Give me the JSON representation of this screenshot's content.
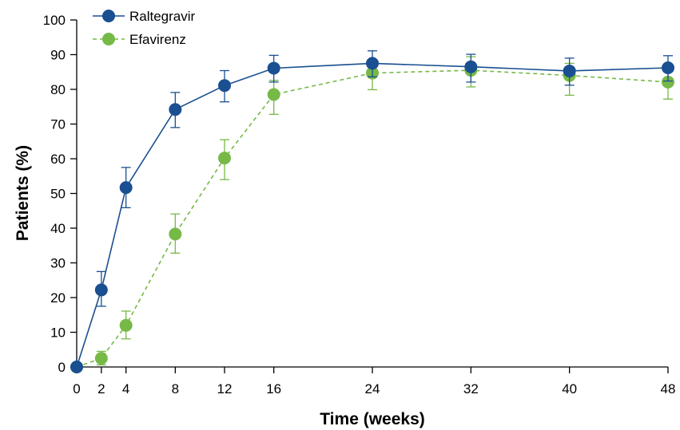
{
  "chart_data": {
    "type": "line",
    "title": "",
    "xlabel": "Time (weeks)",
    "ylabel": "Patients (%)",
    "xlim": [
      0,
      48
    ],
    "ylim": [
      0,
      100
    ],
    "x_ticks": [
      0,
      2,
      4,
      8,
      12,
      16,
      24,
      32,
      40,
      48
    ],
    "y_ticks": [
      0,
      10,
      20,
      30,
      40,
      50,
      60,
      70,
      80,
      90,
      100
    ],
    "grid": false,
    "legend_position": "top-left",
    "series": [
      {
        "name": "Raltegravir",
        "color": "#1a4f91",
        "line_style": "solid",
        "x": [
          0,
          2,
          4,
          8,
          12,
          16,
          24,
          32,
          40,
          48
        ],
        "y": [
          0,
          22.2,
          51.7,
          74.2,
          81.1,
          86.1,
          87.5,
          86.5,
          85.3,
          86.2
        ],
        "err_low": [
          0,
          17.5,
          45.9,
          69.0,
          76.4,
          82.1,
          83.6,
          82.1,
          81.2,
          82.4
        ],
        "err_high": [
          0,
          27.5,
          57.5,
          79.1,
          85.4,
          89.8,
          91.1,
          90.1,
          89.0,
          89.7
        ]
      },
      {
        "name": "Efavirenz",
        "color": "#76b947",
        "line_style": "dashed",
        "x": [
          0,
          2,
          4,
          8,
          12,
          16,
          24,
          32,
          40,
          48
        ],
        "y": [
          0,
          2.5,
          12.0,
          38.3,
          60.2,
          78.5,
          84.7,
          85.5,
          84.0,
          82.1
        ],
        "err_low": [
          0,
          0.6,
          8.1,
          32.8,
          54.0,
          72.8,
          79.9,
          80.7,
          78.3,
          77.2
        ],
        "err_high": [
          0,
          4.5,
          16.1,
          44.1,
          65.5,
          82.6,
          88.2,
          89.4,
          87.5,
          86.9
        ]
      }
    ]
  }
}
